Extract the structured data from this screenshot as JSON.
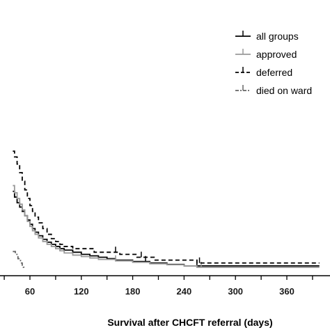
{
  "chart_data": {
    "type": "line",
    "xlabel": "Survival after CHCFT referral (days)",
    "x_ticks": [
      60,
      120,
      180,
      240,
      300,
      360
    ],
    "xlim": [
      40,
      398
    ],
    "ylim": [
      0,
      1
    ],
    "grid": false,
    "legend_position": "top-right",
    "series": [
      {
        "name": "all groups",
        "color": "#000000",
        "dash": "solid",
        "points": [
          [
            40,
            0.54
          ],
          [
            42,
            0.5
          ],
          [
            45,
            0.46
          ],
          [
            48,
            0.43
          ],
          [
            51,
            0.4
          ],
          [
            54,
            0.37
          ],
          [
            57,
            0.34
          ],
          [
            60,
            0.31
          ],
          [
            63,
            0.28
          ],
          [
            66,
            0.255
          ],
          [
            70,
            0.23
          ],
          [
            75,
            0.205
          ],
          [
            80,
            0.185
          ],
          [
            85,
            0.17
          ],
          [
            90,
            0.155
          ],
          [
            95,
            0.14
          ],
          [
            100,
            0.13
          ],
          [
            110,
            0.115
          ],
          [
            120,
            0.1
          ],
          [
            130,
            0.09
          ],
          [
            140,
            0.08
          ],
          [
            150,
            0.07
          ],
          [
            160,
            0.06
          ],
          [
            180,
            0.05
          ],
          [
            200,
            0.04
          ],
          [
            220,
            0.03
          ],
          [
            240,
            0.02
          ],
          [
            255,
            0.02
          ],
          [
            398,
            0.02
          ]
        ],
        "censor_x": [
          195,
          255
        ]
      },
      {
        "name": "approved",
        "color": "#999999",
        "dash": "solid",
        "points": [
          [
            40,
            0.58
          ],
          [
            42,
            0.53
          ],
          [
            45,
            0.49
          ],
          [
            48,
            0.45
          ],
          [
            51,
            0.41
          ],
          [
            54,
            0.37
          ],
          [
            57,
            0.33
          ],
          [
            60,
            0.295
          ],
          [
            63,
            0.265
          ],
          [
            66,
            0.24
          ],
          [
            70,
            0.215
          ],
          [
            75,
            0.19
          ],
          [
            80,
            0.17
          ],
          [
            85,
            0.155
          ],
          [
            90,
            0.14
          ],
          [
            95,
            0.125
          ],
          [
            100,
            0.11
          ],
          [
            110,
            0.095
          ],
          [
            120,
            0.085
          ],
          [
            130,
            0.075
          ],
          [
            140,
            0.065
          ],
          [
            160,
            0.055
          ],
          [
            180,
            0.045
          ],
          [
            200,
            0.035
          ],
          [
            220,
            0.028
          ],
          [
            240,
            0.02
          ],
          [
            255,
            0.01
          ],
          [
            398,
            0.01
          ]
        ],
        "censor_x": [
          160,
          260
        ]
      },
      {
        "name": "deferred",
        "color": "#000000",
        "dash": "dashed",
        "points": [
          [
            40,
            0.82
          ],
          [
            42,
            0.78
          ],
          [
            45,
            0.73
          ],
          [
            48,
            0.67
          ],
          [
            51,
            0.61
          ],
          [
            54,
            0.55
          ],
          [
            57,
            0.49
          ],
          [
            60,
            0.44
          ],
          [
            63,
            0.4
          ],
          [
            66,
            0.36
          ],
          [
            70,
            0.32
          ],
          [
            75,
            0.28
          ],
          [
            80,
            0.24
          ],
          [
            85,
            0.21
          ],
          [
            90,
            0.19
          ],
          [
            95,
            0.17
          ],
          [
            100,
            0.155
          ],
          [
            110,
            0.14
          ],
          [
            130,
            0.14
          ],
          [
            135,
            0.115
          ],
          [
            160,
            0.115
          ],
          [
            165,
            0.1
          ],
          [
            180,
            0.1
          ],
          [
            185,
            0.08
          ],
          [
            200,
            0.08
          ],
          [
            205,
            0.06
          ],
          [
            250,
            0.06
          ],
          [
            255,
            0.04
          ],
          [
            398,
            0.04
          ]
        ],
        "censor_x": [
          160,
          190,
          258
        ]
      },
      {
        "name": "died on ward",
        "color": "#666666",
        "dash": "dash-dot",
        "points": [
          [
            40,
            0.12
          ],
          [
            43,
            0.1
          ],
          [
            46,
            0.07
          ],
          [
            49,
            0.04
          ],
          [
            51,
            0.01
          ],
          [
            53,
            0.0
          ]
        ],
        "censor_x": []
      }
    ]
  }
}
